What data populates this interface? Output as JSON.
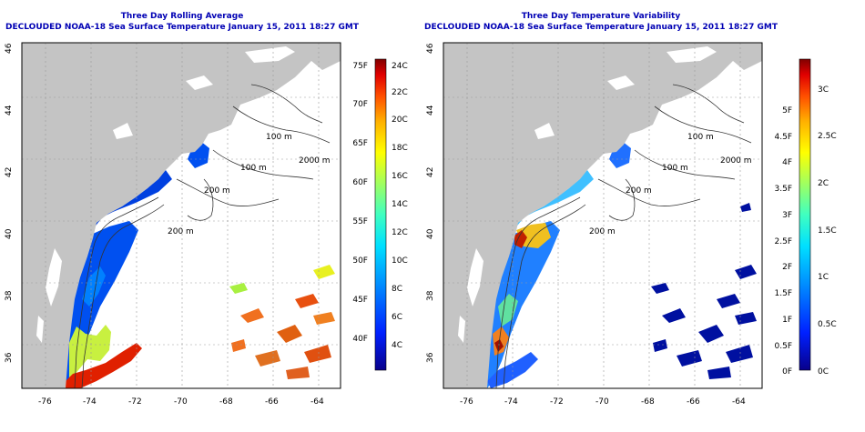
{
  "left_map": {
    "title": "Three Day Rolling Average",
    "subtitle": "DECLOUDED NOAA-18 Sea Surface Temperature January 15, 2011 18:27 GMT",
    "x_ticks": [
      "-76",
      "-74",
      "-72",
      "-70",
      "-68",
      "-66",
      "-64"
    ],
    "y_ticks": [
      "36",
      "38",
      "40",
      "42",
      "44",
      "46"
    ],
    "contour_labels": [
      "100 m",
      "100 m",
      "200 m",
      "2000 m",
      "200 m"
    ],
    "colorbar": {
      "celsius": [
        "24C",
        "22C",
        "20C",
        "18C",
        "16C",
        "14C",
        "12C",
        "10C",
        "8C",
        "6C",
        "4C"
      ],
      "fahrenheit": [
        "75F",
        "70F",
        "65F",
        "60F",
        "55F",
        "50F",
        "45F",
        "40F"
      ],
      "colors": [
        "#08008a",
        "#0020ff",
        "#0090ff",
        "#00e0ff",
        "#40ffc0",
        "#a0ff60",
        "#ffff00",
        "#ffb000",
        "#ff5000",
        "#e00000",
        "#800000"
      ]
    }
  },
  "right_map": {
    "title": "Three Day Temperature Variability",
    "subtitle": "DECLOUDED NOAA-18 Sea Surface Temperature January 15, 2011 18:27 GMT",
    "x_ticks": [
      "-76",
      "-74",
      "-72",
      "-70",
      "-68",
      "-66",
      "-64"
    ],
    "y_ticks": [
      "36",
      "38",
      "40",
      "42",
      "44",
      "46"
    ],
    "contour_labels": [
      "100 m",
      "100 m",
      "200 m",
      "2000 m",
      "200 m"
    ],
    "colorbar": {
      "celsius": [
        "3C",
        "2.5C",
        "2C",
        "1.5C",
        "1C",
        "0.5C",
        "0C"
      ],
      "fahrenheit": [
        "5F",
        "4.5F",
        "4F",
        "3.5F",
        "3F",
        "2.5F",
        "2F",
        "1.5F",
        "1F",
        "0.5F",
        "0F"
      ],
      "colors": [
        "#08008a",
        "#0020ff",
        "#0090ff",
        "#00e0ff",
        "#40ffc0",
        "#a0ff60",
        "#ffff00",
        "#ffb000",
        "#ff5000",
        "#e00000",
        "#800000"
      ]
    }
  }
}
